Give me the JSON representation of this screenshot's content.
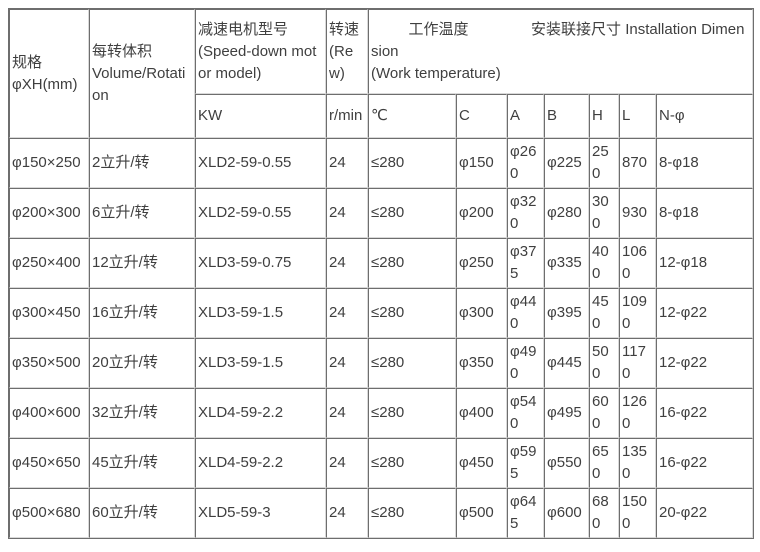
{
  "page": {
    "background": "#ffffff",
    "text_color": "#3f3f3f",
    "border_dark": "#6e6e6e",
    "border_light": "#d9d9d9"
  },
  "table": {
    "header": {
      "spec": "规格\nφXH(mm)",
      "volume": "每转体积\nVolume/Rotation",
      "motor_model": "减速电机型号\n(Speed-down motor model)",
      "motor_model_unit": "KW",
      "speed": "转速\n(Rew)",
      "speed_unit": "r/min",
      "temp_install": "         工作温度               安装联接尺寸 Installation Dimension\n(Work temperature)",
      "sub_columns": [
        "℃",
        "C",
        "A",
        "B",
        "H",
        "L",
        "N-φ"
      ]
    },
    "rows": [
      [
        "φ150×250",
        "2立升/转",
        "XLD2-59-0.55",
        "24",
        "≤280",
        "φ150",
        "φ260",
        "φ225",
        "250",
        "870",
        "8-φ18"
      ],
      [
        "φ200×300",
        "6立升/转",
        "XLD2-59-0.55",
        "24",
        "≤280",
        "φ200",
        "φ320",
        "φ280",
        "300",
        "930",
        "8-φ18"
      ],
      [
        "φ250×400",
        "12立升/转",
        "XLD3-59-0.75",
        "24",
        "≤280",
        "φ250",
        "φ375",
        "φ335",
        "400",
        "1060",
        "12-φ18"
      ],
      [
        "φ300×450",
        "16立升/转",
        "XLD3-59-1.5",
        "24",
        "≤280",
        "φ300",
        "φ440",
        "φ395",
        "450",
        "1090",
        "12-φ22"
      ],
      [
        "φ350×500",
        "20立升/转",
        "XLD3-59-1.5",
        "24",
        "≤280",
        "φ350",
        "φ490",
        "φ445",
        "500",
        "1170",
        "12-φ22"
      ],
      [
        "φ400×600",
        "32立升/转",
        "XLD4-59-2.2",
        "24",
        "≤280",
        "φ400",
        "φ540",
        "φ495",
        "600",
        "1260",
        "16-φ22"
      ],
      [
        "φ450×650",
        "45立升/转",
        "XLD4-59-2.2",
        "24",
        "≤280",
        "φ450",
        "φ595",
        "φ550",
        "650",
        "1350",
        "16-φ22"
      ],
      [
        "φ500×680",
        "60立升/转",
        "XLD5-59-3",
        "24",
        "≤280",
        "φ500",
        "φ645",
        "φ600",
        "680",
        "1500",
        "20-φ22"
      ]
    ]
  }
}
